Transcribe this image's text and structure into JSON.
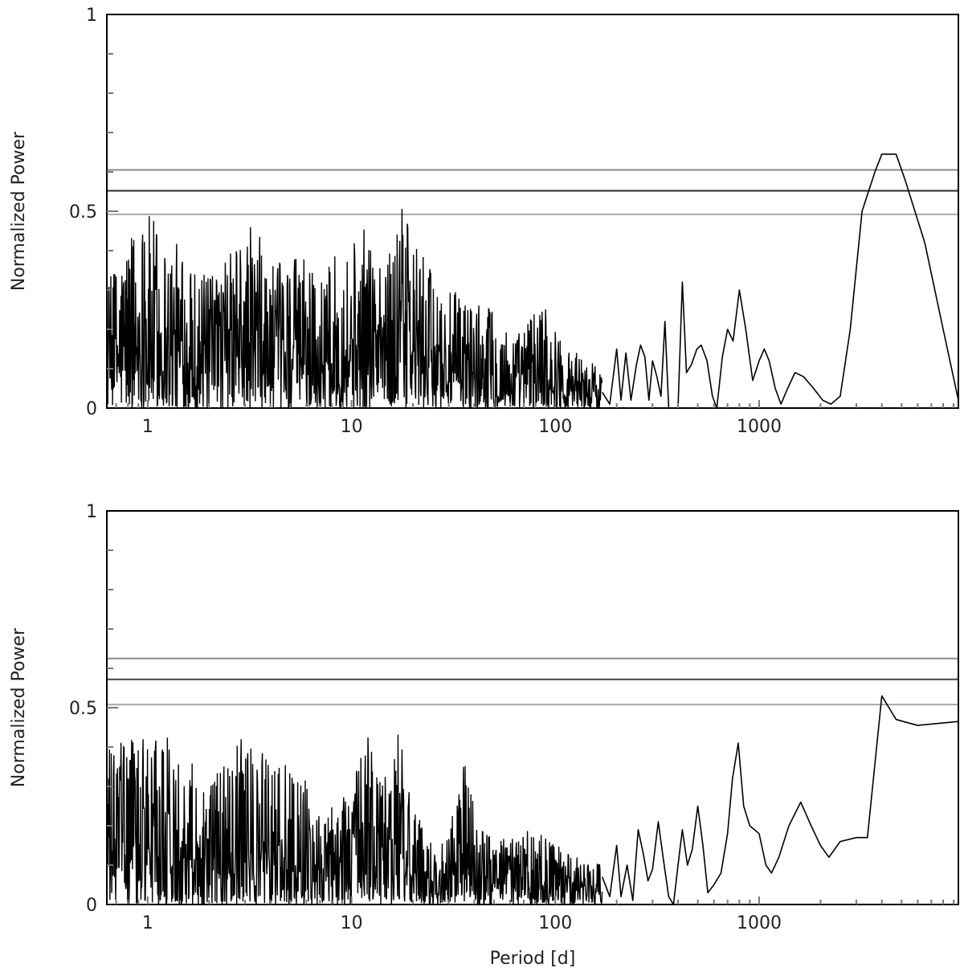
{
  "chart_data": [
    {
      "type": "line",
      "panel": "top",
      "xlabel": "",
      "ylabel": "Normalized Power",
      "x_scale": "log",
      "xlim": [
        0.63,
        9500
      ],
      "ylim": [
        0,
        1
      ],
      "x_ticks": [
        {
          "value": 1,
          "label": "1"
        },
        {
          "value": 10,
          "label": "10"
        },
        {
          "value": 100,
          "label": "100"
        },
        {
          "value": 1000,
          "label": "1000"
        }
      ],
      "y_ticks": [
        {
          "value": 0,
          "label": "0"
        },
        {
          "value": 0.5,
          "label": "0.5"
        },
        {
          "value": 1,
          "label": "1"
        }
      ],
      "thresholds": [
        {
          "y": 0.605,
          "color": "#8a8a8a"
        },
        {
          "y": 0.552,
          "color": "#2b2b2b"
        },
        {
          "y": 0.492,
          "color": "#a8a8a8"
        }
      ],
      "noise_envelope": [
        [
          0.63,
          0.31
        ],
        [
          0.8,
          0.46
        ],
        [
          0.95,
          0.51
        ],
        [
          1.2,
          0.46
        ],
        [
          1.5,
          0.4
        ],
        [
          2,
          0.33
        ],
        [
          3.3,
          0.48
        ],
        [
          4,
          0.36
        ],
        [
          5.5,
          0.4
        ],
        [
          7,
          0.33
        ],
        [
          9,
          0.42
        ],
        [
          12,
          0.46
        ],
        [
          15,
          0.38
        ],
        [
          17,
          0.53
        ],
        [
          20,
          0.44
        ],
        [
          25,
          0.34
        ],
        [
          30,
          0.3
        ],
        [
          40,
          0.28
        ],
        [
          50,
          0.25
        ],
        [
          60,
          0.2
        ],
        [
          70,
          0.2
        ],
        [
          85,
          0.3
        ],
        [
          100,
          0.2
        ],
        [
          120,
          0.15
        ],
        [
          150,
          0.12
        ],
        [
          170,
          0.1
        ]
      ],
      "series": [
        {
          "values": [
            [
              170,
              0.04
            ],
            [
              185,
              0.01
            ],
            [
              200,
              0.15
            ],
            [
              210,
              0.02
            ],
            [
              222,
              0.14
            ],
            [
              235,
              0.02
            ],
            [
              250,
              0.11
            ],
            [
              262,
              0.16
            ],
            [
              275,
              0.13
            ],
            [
              288,
              0.02
            ],
            [
              300,
              0.12
            ],
            [
              315,
              0.08
            ],
            [
              330,
              0.03
            ],
            [
              345,
              0.22
            ],
            [
              360,
              0.0
            ],
            [
              380,
              0.0
            ],
            [
              400,
              0.0
            ],
            [
              420,
              0.32
            ],
            [
              440,
              0.09
            ],
            [
              465,
              0.11
            ],
            [
              495,
              0.15
            ],
            [
              520,
              0.16
            ],
            [
              555,
              0.12
            ],
            [
              590,
              0.03
            ],
            [
              620,
              0.0
            ],
            [
              660,
              0.13
            ],
            [
              700,
              0.2
            ],
            [
              745,
              0.17
            ],
            [
              800,
              0.3
            ],
            [
              860,
              0.2
            ],
            [
              930,
              0.07
            ],
            [
              1000,
              0.12
            ],
            [
              1060,
              0.15
            ],
            [
              1120,
              0.12
            ],
            [
              1200,
              0.05
            ],
            [
              1280,
              0.01
            ],
            [
              1380,
              0.05
            ],
            [
              1500,
              0.09
            ],
            [
              1650,
              0.08
            ],
            [
              1850,
              0.05
            ],
            [
              2050,
              0.02
            ],
            [
              2250,
              0.01
            ],
            [
              2500,
              0.03
            ],
            [
              2800,
              0.2
            ],
            [
              3200,
              0.5
            ],
            [
              3700,
              0.6
            ],
            [
              4000,
              0.645
            ],
            [
              4700,
              0.645
            ],
            [
              5200,
              0.58
            ],
            [
              6500,
              0.42
            ],
            [
              8000,
              0.2
            ],
            [
              9500,
              0.02
            ]
          ]
        }
      ]
    },
    {
      "type": "line",
      "panel": "bottom",
      "xlabel": "Period [d]",
      "ylabel": "Normalized Power",
      "x_scale": "log",
      "xlim": [
        0.63,
        9500
      ],
      "ylim": [
        0,
        1
      ],
      "x_ticks": [
        {
          "value": 1,
          "label": "1"
        },
        {
          "value": 10,
          "label": "10"
        },
        {
          "value": 100,
          "label": "100"
        },
        {
          "value": 1000,
          "label": "1000"
        }
      ],
      "y_ticks": [
        {
          "value": 0,
          "label": "0"
        },
        {
          "value": 0.5,
          "label": "0.5"
        },
        {
          "value": 1,
          "label": "1"
        }
      ],
      "thresholds": [
        {
          "y": 0.625,
          "color": "#8a8a8a"
        },
        {
          "y": 0.572,
          "color": "#444444"
        },
        {
          "y": 0.508,
          "color": "#a8a8a8"
        }
      ],
      "noise_envelope": [
        [
          0.63,
          0.4
        ],
        [
          0.8,
          0.42
        ],
        [
          1,
          0.44
        ],
        [
          1.3,
          0.43
        ],
        [
          1.6,
          0.38
        ],
        [
          2,
          0.32
        ],
        [
          2.6,
          0.38
        ],
        [
          3,
          0.44
        ],
        [
          3.5,
          0.4
        ],
        [
          4.5,
          0.36
        ],
        [
          5.5,
          0.35
        ],
        [
          6.5,
          0.3
        ],
        [
          8,
          0.25
        ],
        [
          10,
          0.3
        ],
        [
          12,
          0.44
        ],
        [
          14,
          0.3
        ],
        [
          17,
          0.44
        ],
        [
          20,
          0.25
        ],
        [
          25,
          0.15
        ],
        [
          30,
          0.18
        ],
        [
          35,
          0.38
        ],
        [
          40,
          0.26
        ],
        [
          50,
          0.15
        ],
        [
          60,
          0.18
        ],
        [
          70,
          0.2
        ],
        [
          85,
          0.18
        ],
        [
          100,
          0.16
        ],
        [
          120,
          0.12
        ],
        [
          150,
          0.12
        ],
        [
          170,
          0.1
        ]
      ],
      "series": [
        {
          "values": [
            [
              170,
              0.07
            ],
            [
              185,
              0.02
            ],
            [
              200,
              0.15
            ],
            [
              210,
              0.02
            ],
            [
              225,
              0.1
            ],
            [
              240,
              0.01
            ],
            [
              255,
              0.19
            ],
            [
              270,
              0.13
            ],
            [
              285,
              0.06
            ],
            [
              300,
              0.09
            ],
            [
              320,
              0.21
            ],
            [
              340,
              0.11
            ],
            [
              360,
              0.02
            ],
            [
              380,
              0.0
            ],
            [
              400,
              0.1
            ],
            [
              420,
              0.19
            ],
            [
              445,
              0.1
            ],
            [
              470,
              0.14
            ],
            [
              500,
              0.25
            ],
            [
              530,
              0.15
            ],
            [
              560,
              0.03
            ],
            [
              600,
              0.05
            ],
            [
              650,
              0.08
            ],
            [
              700,
              0.18
            ],
            [
              740,
              0.32
            ],
            [
              790,
              0.41
            ],
            [
              840,
              0.25
            ],
            [
              900,
              0.2
            ],
            [
              1000,
              0.18
            ],
            [
              1080,
              0.1
            ],
            [
              1150,
              0.08
            ],
            [
              1250,
              0.12
            ],
            [
              1400,
              0.2
            ],
            [
              1600,
              0.26
            ],
            [
              1800,
              0.2
            ],
            [
              2000,
              0.15
            ],
            [
              2200,
              0.12
            ],
            [
              2500,
              0.16
            ],
            [
              3000,
              0.17
            ],
            [
              3400,
              0.17
            ],
            [
              4000,
              0.53
            ],
            [
              4700,
              0.47
            ],
            [
              6000,
              0.455
            ],
            [
              9500,
              0.465
            ]
          ]
        }
      ]
    }
  ]
}
